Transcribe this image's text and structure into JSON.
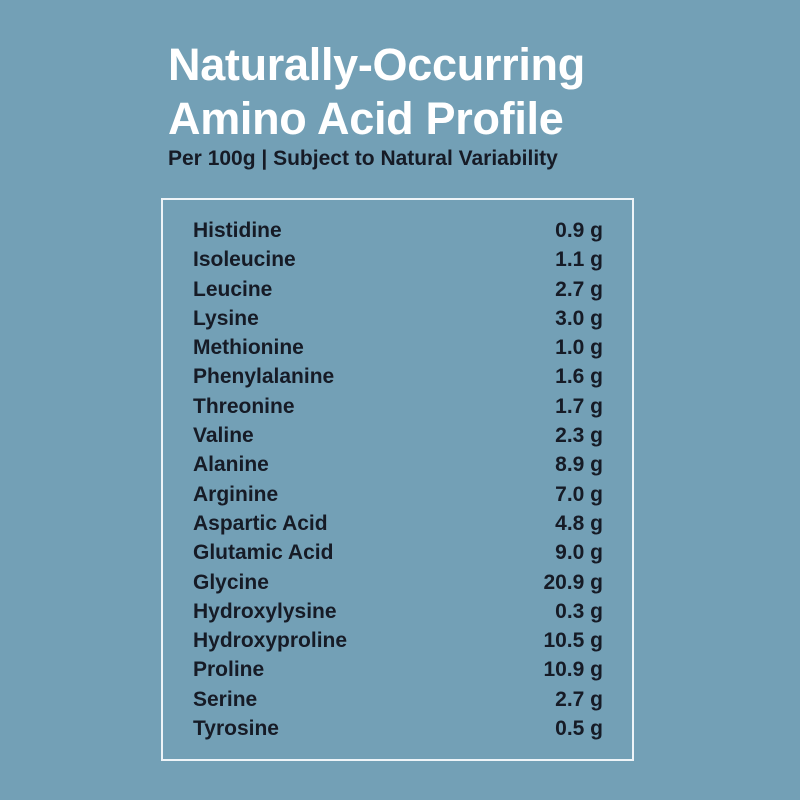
{
  "title": {
    "line1": "Naturally-Occurring",
    "line2": "Amino Acid Profile"
  },
  "subtitle": "Per 100g | Subject to Natural Variability",
  "rows": [
    {
      "name": "Histidine",
      "value": "0.9 g"
    },
    {
      "name": "Isoleucine",
      "value": "1.1 g"
    },
    {
      "name": "Leucine",
      "value": "2.7 g"
    },
    {
      "name": "Lysine",
      "value": "3.0 g"
    },
    {
      "name": "Methionine",
      "value": "1.0 g"
    },
    {
      "name": "Phenylalanine",
      "value": "1.6 g"
    },
    {
      "name": "Threonine",
      "value": "1.7 g"
    },
    {
      "name": "Valine",
      "value": "2.3 g"
    },
    {
      "name": "Alanine",
      "value": "8.9 g"
    },
    {
      "name": "Arginine",
      "value": "7.0 g"
    },
    {
      "name": "Aspartic Acid",
      "value": "4.8 g"
    },
    {
      "name": "Glutamic Acid",
      "value": "9.0 g"
    },
    {
      "name": "Glycine",
      "value": "20.9 g"
    },
    {
      "name": "Hydroxylysine",
      "value": "0.3 g"
    },
    {
      "name": "Hydroxyproline",
      "value": "10.5 g"
    },
    {
      "name": "Proline",
      "value": "10.9 g"
    },
    {
      "name": "Serine",
      "value": "2.7 g"
    },
    {
      "name": "Tyrosine",
      "value": "0.5 g"
    }
  ],
  "colors": {
    "background": "#73a0b6",
    "title": "#ffffff",
    "text": "#161b26",
    "border": "#eef4f8"
  }
}
